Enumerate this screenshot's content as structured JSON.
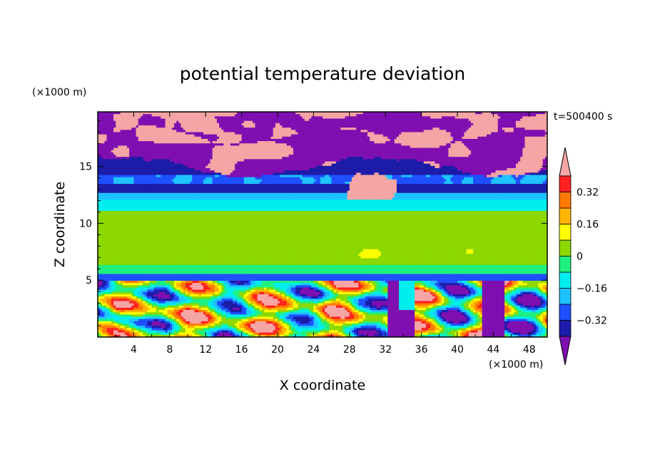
{
  "chart_data": {
    "type": "heatmap",
    "title": "potential temperature deviation",
    "xlabel": "X coordinate",
    "ylabel": "Z coordinate",
    "x_unit": "(×1000 m)",
    "y_unit": "(×1000 m)",
    "time_label": "t=500400 s",
    "xlim": [
      0,
      50
    ],
    "ylim": [
      0,
      19.8
    ],
    "x_ticks": [
      4,
      8,
      12,
      16,
      20,
      24,
      28,
      32,
      36,
      40,
      44,
      48
    ],
    "y_ticks": [
      5,
      10,
      15
    ],
    "colorbar": {
      "levels": [
        -0.4,
        -0.32,
        -0.24,
        -0.16,
        -0.08,
        0,
        0.08,
        0.16,
        0.24,
        0.32,
        0.4
      ],
      "tick_labels": [
        "0.32",
        "0.16",
        "0",
        "−0.16",
        "−0.32"
      ],
      "tick_values": [
        0.32,
        0.16,
        0,
        -0.16,
        -0.32
      ],
      "colors": [
        "#7f0fb0",
        "#1c1ca8",
        "#1e50ff",
        "#1ec2ff",
        "#00eef0",
        "#1ef080",
        "#8cd800",
        "#ffff00",
        "#ffb400",
        "#ff7a00",
        "#ff2020",
        "#f5a5a5"
      ],
      "extend": "both"
    },
    "bands": [
      {
        "z_range": [
          17.5,
          19.8
        ],
        "level": "high"
      },
      {
        "z_range": [
          15.0,
          17.5
        ],
        "level": "low"
      },
      {
        "z_range": [
          12.0,
          15.0
        ],
        "level": "low"
      },
      {
        "z_range": [
          11.0,
          12.0
        ],
        "level": "slightly_negative"
      },
      {
        "z_range": [
          5.5,
          11.0
        ],
        "level": "near_zero"
      },
      {
        "z_range": [
          0,
          5.5
        ],
        "level": "mixed"
      }
    ]
  }
}
